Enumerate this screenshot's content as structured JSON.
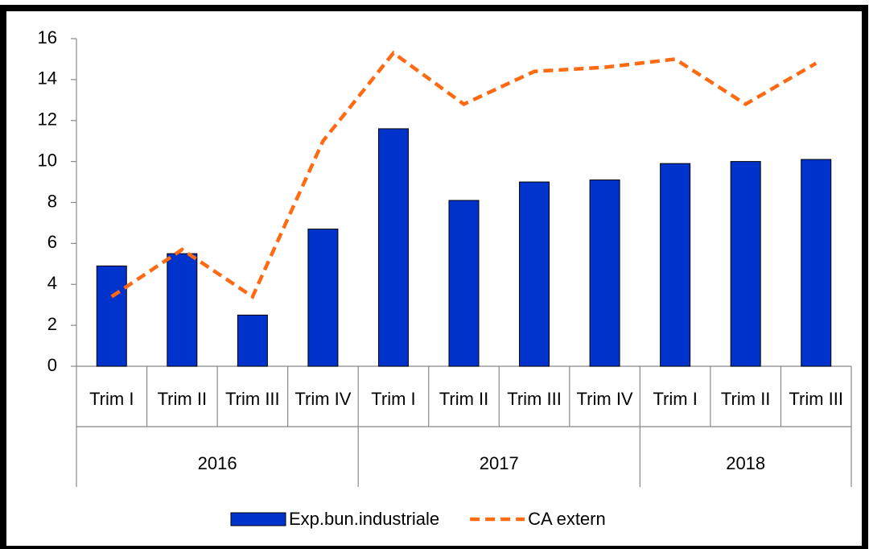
{
  "chart_data": {
    "type": "bar",
    "groups": [
      {
        "name": "2016",
        "categories": [
          "Trim I",
          "Trim II",
          "Trim III",
          "Trim IV"
        ]
      },
      {
        "name": "2017",
        "categories": [
          "Trim I",
          "Trim II",
          "Trim III",
          "Trim IV"
        ]
      },
      {
        "name": "2018",
        "categories": [
          "Trim I",
          "Trim II",
          "Trim III"
        ]
      }
    ],
    "series": [
      {
        "name": "Exp.bun.industriale",
        "kind": "bar",
        "color": "#0033cc",
        "values": [
          4.9,
          5.5,
          2.5,
          6.7,
          11.6,
          8.1,
          9.0,
          9.1,
          9.9,
          10.0,
          10.1
        ]
      },
      {
        "name": "CA extern",
        "kind": "line",
        "style": "dashed",
        "color": "#ff6a13",
        "values": [
          3.4,
          5.7,
          3.4,
          11.0,
          15.3,
          12.8,
          14.4,
          14.6,
          15.0,
          12.8,
          14.8
        ]
      }
    ],
    "ylim": [
      0,
      16
    ],
    "yticks": [
      0,
      2,
      4,
      6,
      8,
      10,
      12,
      14,
      16
    ],
    "legend": "bottom"
  }
}
